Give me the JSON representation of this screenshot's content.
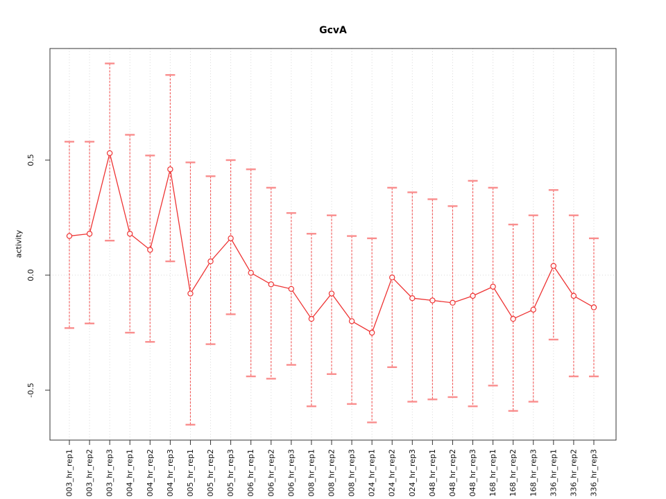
{
  "figure": {
    "title": "GcvA",
    "y_axis_title": "activity"
  },
  "chart_data": {
    "type": "line",
    "title": "GcvA",
    "xlabel": "",
    "ylabel": "activity",
    "ylim": [
      -0.72,
      0.99
    ],
    "yticks": [
      -0.5,
      0.0,
      0.5
    ],
    "ytick_labels": [
      "-0.5",
      "0.0",
      "0.5"
    ],
    "grid": {
      "vertical_dotted_per_category": true,
      "horizontal_dotted_at": 0
    },
    "legend_position": "none",
    "error_bars": true,
    "categories": [
      "003_hr_rep1",
      "003_hr_rep2",
      "003_hr_rep3",
      "004_hr_rep1",
      "004_hr_rep2",
      "004_hr_rep3",
      "005_hr_rep1",
      "005_hr_rep2",
      "005_hr_rep3",
      "006_hr_rep1",
      "006_hr_rep2",
      "006_hr_rep3",
      "008_hr_rep1",
      "008_hr_rep2",
      "008_hr_rep3",
      "024_hr_rep1",
      "024_hr_rep2",
      "024_hr_rep3",
      "048_hr_rep1",
      "048_hr_rep2",
      "048_hr_rep3",
      "168_hr_rep1",
      "168_hr_rep2",
      "168_hr_rep3",
      "336_hr_rep1",
      "336_hr_rep2",
      "336_hr_rep3"
    ],
    "series": [
      {
        "name": "GcvA activity",
        "values": [
          0.17,
          0.18,
          0.53,
          0.18,
          0.11,
          0.46,
          -0.08,
          0.06,
          0.16,
          0.01,
          -0.04,
          -0.06,
          -0.19,
          -0.08,
          -0.2,
          -0.25,
          -0.01,
          -0.1,
          -0.11,
          -0.12,
          -0.09,
          -0.05,
          -0.19,
          -0.15,
          0.04,
          -0.09,
          -0.14
        ],
        "upper": [
          0.58,
          0.58,
          0.92,
          0.61,
          0.52,
          0.87,
          0.49,
          0.43,
          0.5,
          0.46,
          0.38,
          0.27,
          0.18,
          0.26,
          0.17,
          0.16,
          0.38,
          0.36,
          0.33,
          0.3,
          0.41,
          0.38,
          0.22,
          0.26,
          0.37,
          0.26,
          0.16
        ],
        "lower": [
          -0.23,
          -0.21,
          0.15,
          -0.25,
          -0.29,
          0.06,
          -0.65,
          -0.3,
          -0.17,
          -0.44,
          -0.45,
          -0.39,
          -0.57,
          -0.43,
          -0.56,
          -0.64,
          -0.4,
          -0.55,
          -0.54,
          -0.53,
          -0.57,
          -0.48,
          -0.59,
          -0.55,
          -0.28,
          -0.44,
          -0.44
        ]
      }
    ],
    "colors": {
      "series": "#ee3333",
      "stem": "#f25555",
      "cap": "#f98d8d",
      "grid": "#d9d9d9",
      "axis": "#333333",
      "text": "#111111"
    }
  }
}
